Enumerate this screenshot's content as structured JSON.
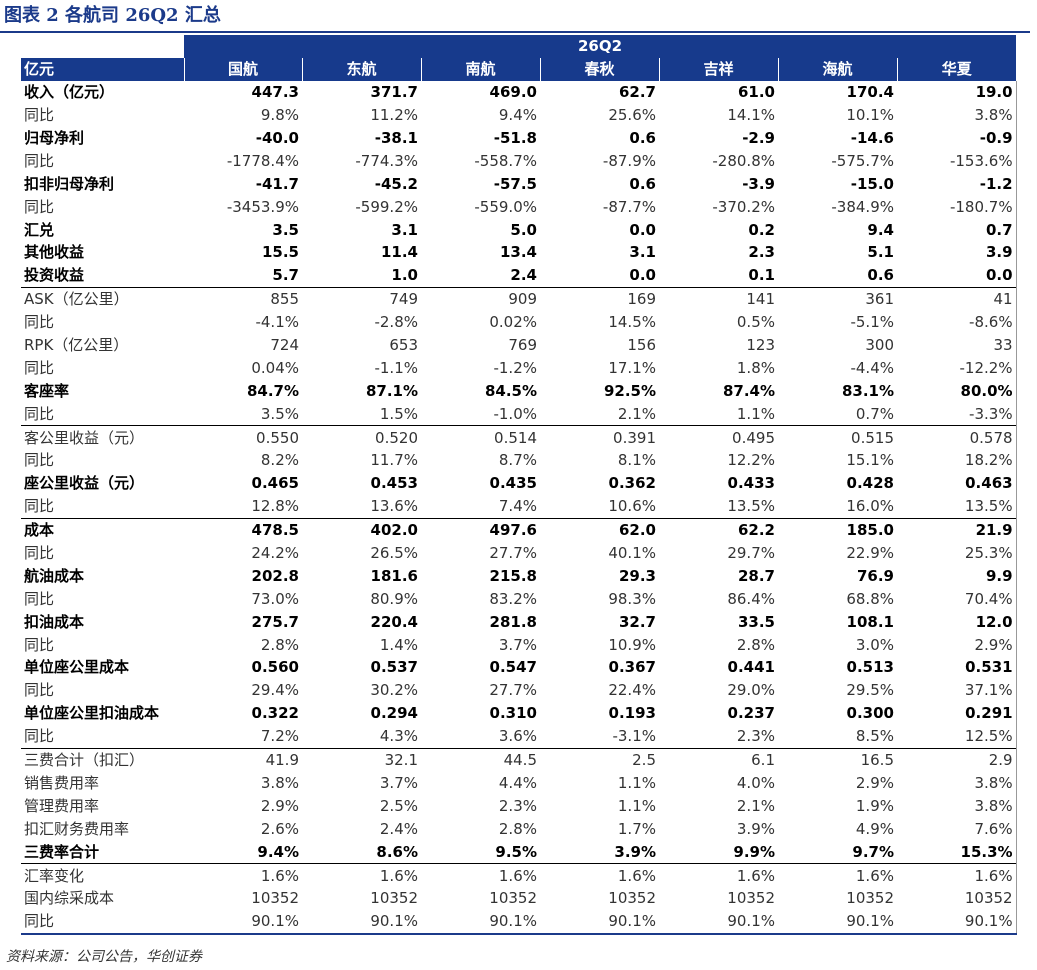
{
  "title": "图表 2 各航司 26Q2 汇总",
  "source": "资料来源：公司公告，华创证券",
  "period": "26Q2",
  "unit_label": "亿元",
  "columns": [
    "国航",
    "东航",
    "南航",
    "春秋",
    "吉祥",
    "海航",
    "华夏"
  ],
  "rows": [
    {
      "label": "收入（亿元）",
      "bold": true,
      "sep": false,
      "values": [
        "447.3",
        "371.7",
        "469.0",
        "62.7",
        "61.0",
        "170.4",
        "19.0"
      ]
    },
    {
      "label": "同比",
      "bold": false,
      "sep": false,
      "values": [
        "9.8%",
        "11.2%",
        "9.4%",
        "25.6%",
        "14.1%",
        "10.1%",
        "3.8%"
      ]
    },
    {
      "label": "归母净利",
      "bold": true,
      "sep": false,
      "values": [
        "-40.0",
        "-38.1",
        "-51.8",
        "0.6",
        "-2.9",
        "-14.6",
        "-0.9"
      ]
    },
    {
      "label": "同比",
      "bold": false,
      "sep": false,
      "values": [
        "-1778.4%",
        "-774.3%",
        "-558.7%",
        "-87.9%",
        "-280.8%",
        "-575.7%",
        "-153.6%"
      ]
    },
    {
      "label": "扣非归母净利",
      "bold": true,
      "sep": false,
      "values": [
        "-41.7",
        "-45.2",
        "-57.5",
        "0.6",
        "-3.9",
        "-15.0",
        "-1.2"
      ]
    },
    {
      "label": "同比",
      "bold": false,
      "sep": false,
      "values": [
        "-3453.9%",
        "-599.2%",
        "-559.0%",
        "-87.7%",
        "-370.2%",
        "-384.9%",
        "-180.7%"
      ]
    },
    {
      "label": "汇兑",
      "bold": true,
      "sep": false,
      "values": [
        "3.5",
        "3.1",
        "5.0",
        "0.0",
        "0.2",
        "9.4",
        "0.7"
      ]
    },
    {
      "label": "其他收益",
      "bold": true,
      "sep": false,
      "values": [
        "15.5",
        "11.4",
        "13.4",
        "3.1",
        "2.3",
        "5.1",
        "3.9"
      ]
    },
    {
      "label": "投资收益",
      "bold": true,
      "sep": false,
      "values": [
        "5.7",
        "1.0",
        "2.4",
        "0.0",
        "0.1",
        "0.6",
        "0.0"
      ]
    },
    {
      "label": "ASK（亿公里）",
      "bold": false,
      "sep": true,
      "values": [
        "855",
        "749",
        "909",
        "169",
        "141",
        "361",
        "41"
      ]
    },
    {
      "label": "同比",
      "bold": false,
      "sep": false,
      "values": [
        "-4.1%",
        "-2.8%",
        "0.02%",
        "14.5%",
        "0.5%",
        "-5.1%",
        "-8.6%"
      ]
    },
    {
      "label": "RPK（亿公里）",
      "bold": false,
      "sep": false,
      "values": [
        "724",
        "653",
        "769",
        "156",
        "123",
        "300",
        "33"
      ]
    },
    {
      "label": "同比",
      "bold": false,
      "sep": false,
      "values": [
        "0.04%",
        "-1.1%",
        "-1.2%",
        "17.1%",
        "1.8%",
        "-4.4%",
        "-12.2%"
      ]
    },
    {
      "label": "客座率",
      "bold": true,
      "sep": false,
      "values": [
        "84.7%",
        "87.1%",
        "84.5%",
        "92.5%",
        "87.4%",
        "83.1%",
        "80.0%"
      ]
    },
    {
      "label": "同比",
      "bold": false,
      "sep": false,
      "values": [
        "3.5%",
        "1.5%",
        "-1.0%",
        "2.1%",
        "1.1%",
        "0.7%",
        "-3.3%"
      ]
    },
    {
      "label": "客公里收益（元）",
      "bold": false,
      "sep": true,
      "values": [
        "0.550",
        "0.520",
        "0.514",
        "0.391",
        "0.495",
        "0.515",
        "0.578"
      ]
    },
    {
      "label": "同比",
      "bold": false,
      "sep": false,
      "values": [
        "8.2%",
        "11.7%",
        "8.7%",
        "8.1%",
        "12.2%",
        "15.1%",
        "18.2%"
      ]
    },
    {
      "label": "座公里收益（元）",
      "bold": true,
      "sep": false,
      "values": [
        "0.465",
        "0.453",
        "0.435",
        "0.362",
        "0.433",
        "0.428",
        "0.463"
      ]
    },
    {
      "label": "同比",
      "bold": false,
      "sep": false,
      "values": [
        "12.8%",
        "13.6%",
        "7.4%",
        "10.6%",
        "13.5%",
        "16.0%",
        "13.5%"
      ]
    },
    {
      "label": "成本",
      "bold": true,
      "sep": true,
      "values": [
        "478.5",
        "402.0",
        "497.6",
        "62.0",
        "62.2",
        "185.0",
        "21.9"
      ]
    },
    {
      "label": "同比",
      "bold": false,
      "sep": false,
      "values": [
        "24.2%",
        "26.5%",
        "27.7%",
        "40.1%",
        "29.7%",
        "22.9%",
        "25.3%"
      ]
    },
    {
      "label": "航油成本",
      "bold": true,
      "sep": false,
      "values": [
        "202.8",
        "181.6",
        "215.8",
        "29.3",
        "28.7",
        "76.9",
        "9.9"
      ]
    },
    {
      "label": "同比",
      "bold": false,
      "sep": false,
      "values": [
        "73.0%",
        "80.9%",
        "83.2%",
        "98.3%",
        "86.4%",
        "68.8%",
        "70.4%"
      ]
    },
    {
      "label": "扣油成本",
      "bold": true,
      "sep": false,
      "values": [
        "275.7",
        "220.4",
        "281.8",
        "32.7",
        "33.5",
        "108.1",
        "12.0"
      ]
    },
    {
      "label": "同比",
      "bold": false,
      "sep": false,
      "values": [
        "2.8%",
        "1.4%",
        "3.7%",
        "10.9%",
        "2.8%",
        "3.0%",
        "2.9%"
      ]
    },
    {
      "label": "单位座公里成本",
      "bold": true,
      "sep": false,
      "values": [
        "0.560",
        "0.537",
        "0.547",
        "0.367",
        "0.441",
        "0.513",
        "0.531"
      ]
    },
    {
      "label": "同比",
      "bold": false,
      "sep": false,
      "values": [
        "29.4%",
        "30.2%",
        "27.7%",
        "22.4%",
        "29.0%",
        "29.5%",
        "37.1%"
      ]
    },
    {
      "label": "单位座公里扣油成本",
      "bold": true,
      "sep": false,
      "values": [
        "0.322",
        "0.294",
        "0.310",
        "0.193",
        "0.237",
        "0.300",
        "0.291"
      ]
    },
    {
      "label": "同比",
      "bold": false,
      "sep": false,
      "values": [
        "7.2%",
        "4.3%",
        "3.6%",
        "-3.1%",
        "2.3%",
        "8.5%",
        "12.5%"
      ]
    },
    {
      "label": "三费合计（扣汇）",
      "bold": false,
      "sep": true,
      "values": [
        "41.9",
        "32.1",
        "44.5",
        "2.5",
        "6.1",
        "16.5",
        "2.9"
      ]
    },
    {
      "label": "销售费用率",
      "bold": false,
      "sep": false,
      "values": [
        "3.8%",
        "3.7%",
        "4.4%",
        "1.1%",
        "4.0%",
        "2.9%",
        "3.8%"
      ]
    },
    {
      "label": "管理费用率",
      "bold": false,
      "sep": false,
      "values": [
        "2.9%",
        "2.5%",
        "2.3%",
        "1.1%",
        "2.1%",
        "1.9%",
        "3.8%"
      ]
    },
    {
      "label": "扣汇财务费用率",
      "bold": false,
      "sep": false,
      "values": [
        "2.6%",
        "2.4%",
        "2.8%",
        "1.7%",
        "3.9%",
        "4.9%",
        "7.6%"
      ]
    },
    {
      "label": "三费率合计",
      "bold": true,
      "sep": false,
      "values": [
        "9.4%",
        "8.6%",
        "9.5%",
        "3.9%",
        "9.9%",
        "9.7%",
        "15.3%"
      ]
    },
    {
      "label": "汇率变化",
      "bold": false,
      "sep": true,
      "values": [
        "1.6%",
        "1.6%",
        "1.6%",
        "1.6%",
        "1.6%",
        "1.6%",
        "1.6%"
      ]
    },
    {
      "label": "国内综采成本",
      "bold": false,
      "sep": false,
      "values": [
        "10352",
        "10352",
        "10352",
        "10352",
        "10352",
        "10352",
        "10352"
      ]
    },
    {
      "label": "同比",
      "bold": false,
      "sep": false,
      "values": [
        "90.1%",
        "90.1%",
        "90.1%",
        "90.1%",
        "90.1%",
        "90.1%",
        "90.1%"
      ]
    }
  ]
}
